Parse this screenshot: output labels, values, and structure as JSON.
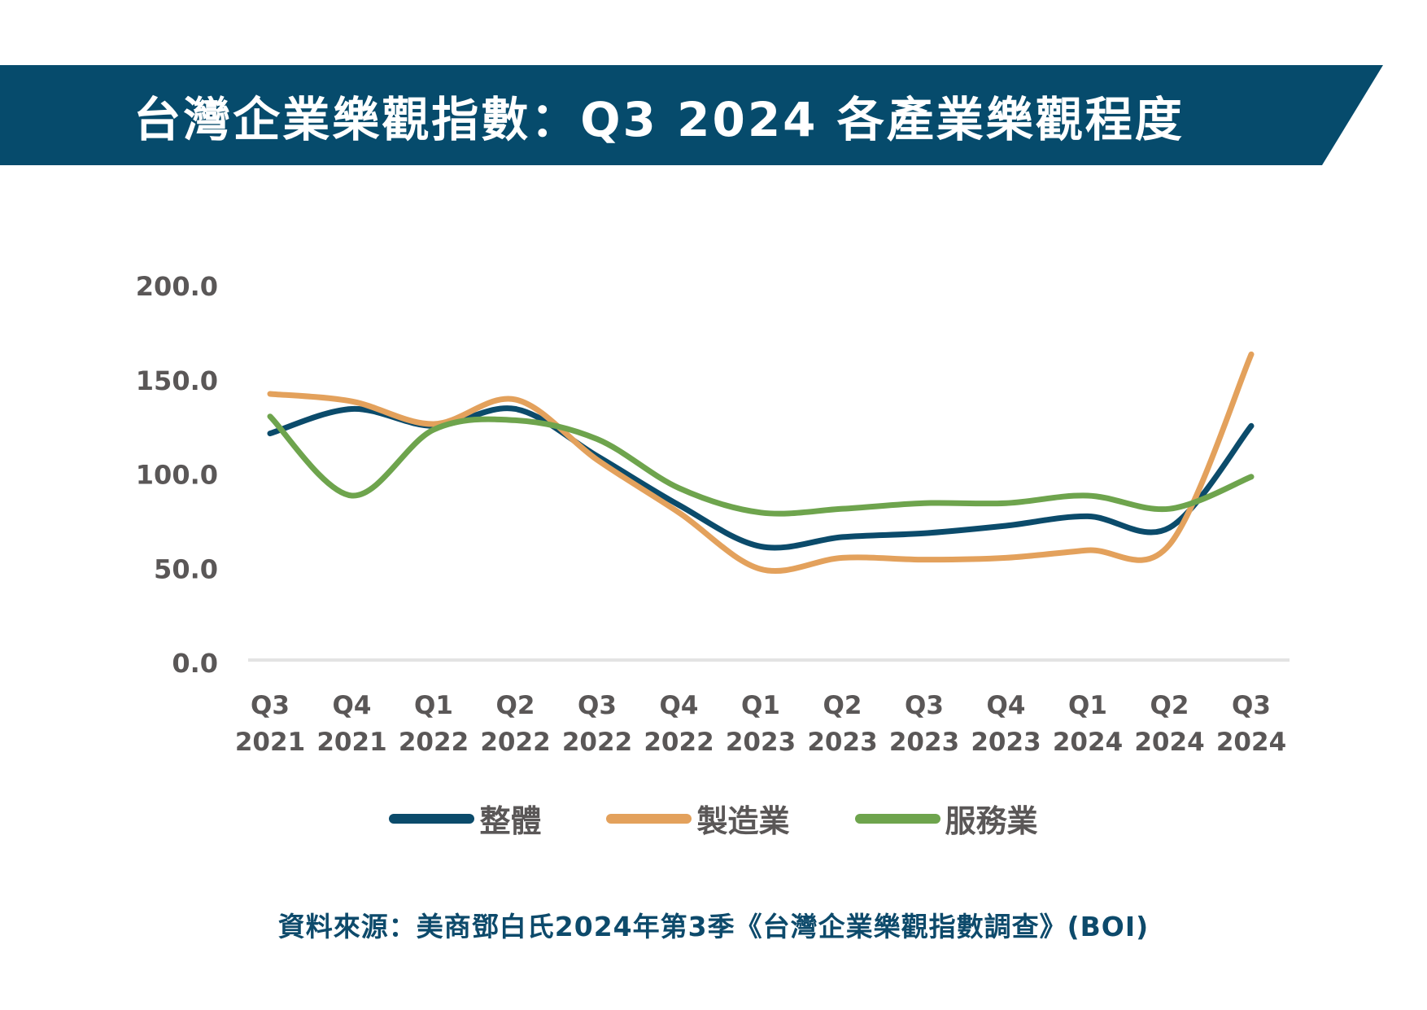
{
  "header": {
    "title": "台灣企業樂觀指數：Q3 2024 各產業樂觀程度",
    "background_color": "#064b6c"
  },
  "chart_data": {
    "type": "line",
    "title": "台灣企業樂觀指數：Q3 2024 各產業樂觀程度",
    "xlabel": "",
    "ylabel": "",
    "ylim": [
      0,
      200
    ],
    "yticks": [
      "0.0",
      "50.0",
      "100.0",
      "150.0",
      "200.0"
    ],
    "ytick_values": [
      0,
      50,
      100,
      150,
      200
    ],
    "categories": [
      {
        "quarter": "Q3",
        "year": "2021"
      },
      {
        "quarter": "Q4",
        "year": "2021"
      },
      {
        "quarter": "Q1",
        "year": "2022"
      },
      {
        "quarter": "Q2",
        "year": "2022"
      },
      {
        "quarter": "Q3",
        "year": "2022"
      },
      {
        "quarter": "Q4",
        "year": "2022"
      },
      {
        "quarter": "Q1",
        "year": "2023"
      },
      {
        "quarter": "Q2",
        "year": "2023"
      },
      {
        "quarter": "Q3",
        "year": "2023"
      },
      {
        "quarter": "Q4",
        "year": "2023"
      },
      {
        "quarter": "Q1",
        "year": "2024"
      },
      {
        "quarter": "Q2",
        "year": "2024"
      },
      {
        "quarter": "Q3",
        "year": "2024"
      }
    ],
    "series": [
      {
        "name": "整體",
        "color": "#0b4b6b",
        "values": [
          122,
          135,
          126,
          135,
          110,
          84,
          62,
          67,
          69,
          73,
          78,
          72,
          126
        ]
      },
      {
        "name": "製造業",
        "color": "#e3a15c",
        "values": [
          143,
          139,
          127,
          140,
          108,
          80,
          50,
          56,
          55,
          56,
          60,
          63,
          164
        ]
      },
      {
        "name": "服務業",
        "color": "#6ea44d",
        "values": [
          131,
          89,
          124,
          129,
          119,
          93,
          80,
          82,
          85,
          85,
          89,
          82,
          99
        ]
      }
    ],
    "grid": false,
    "smooth": true,
    "legend_position": "bottom-center"
  },
  "footer": {
    "source": "資料來源：美商鄧白氏2024年第3季《台灣企業樂觀指數調查》(BOI)"
  }
}
